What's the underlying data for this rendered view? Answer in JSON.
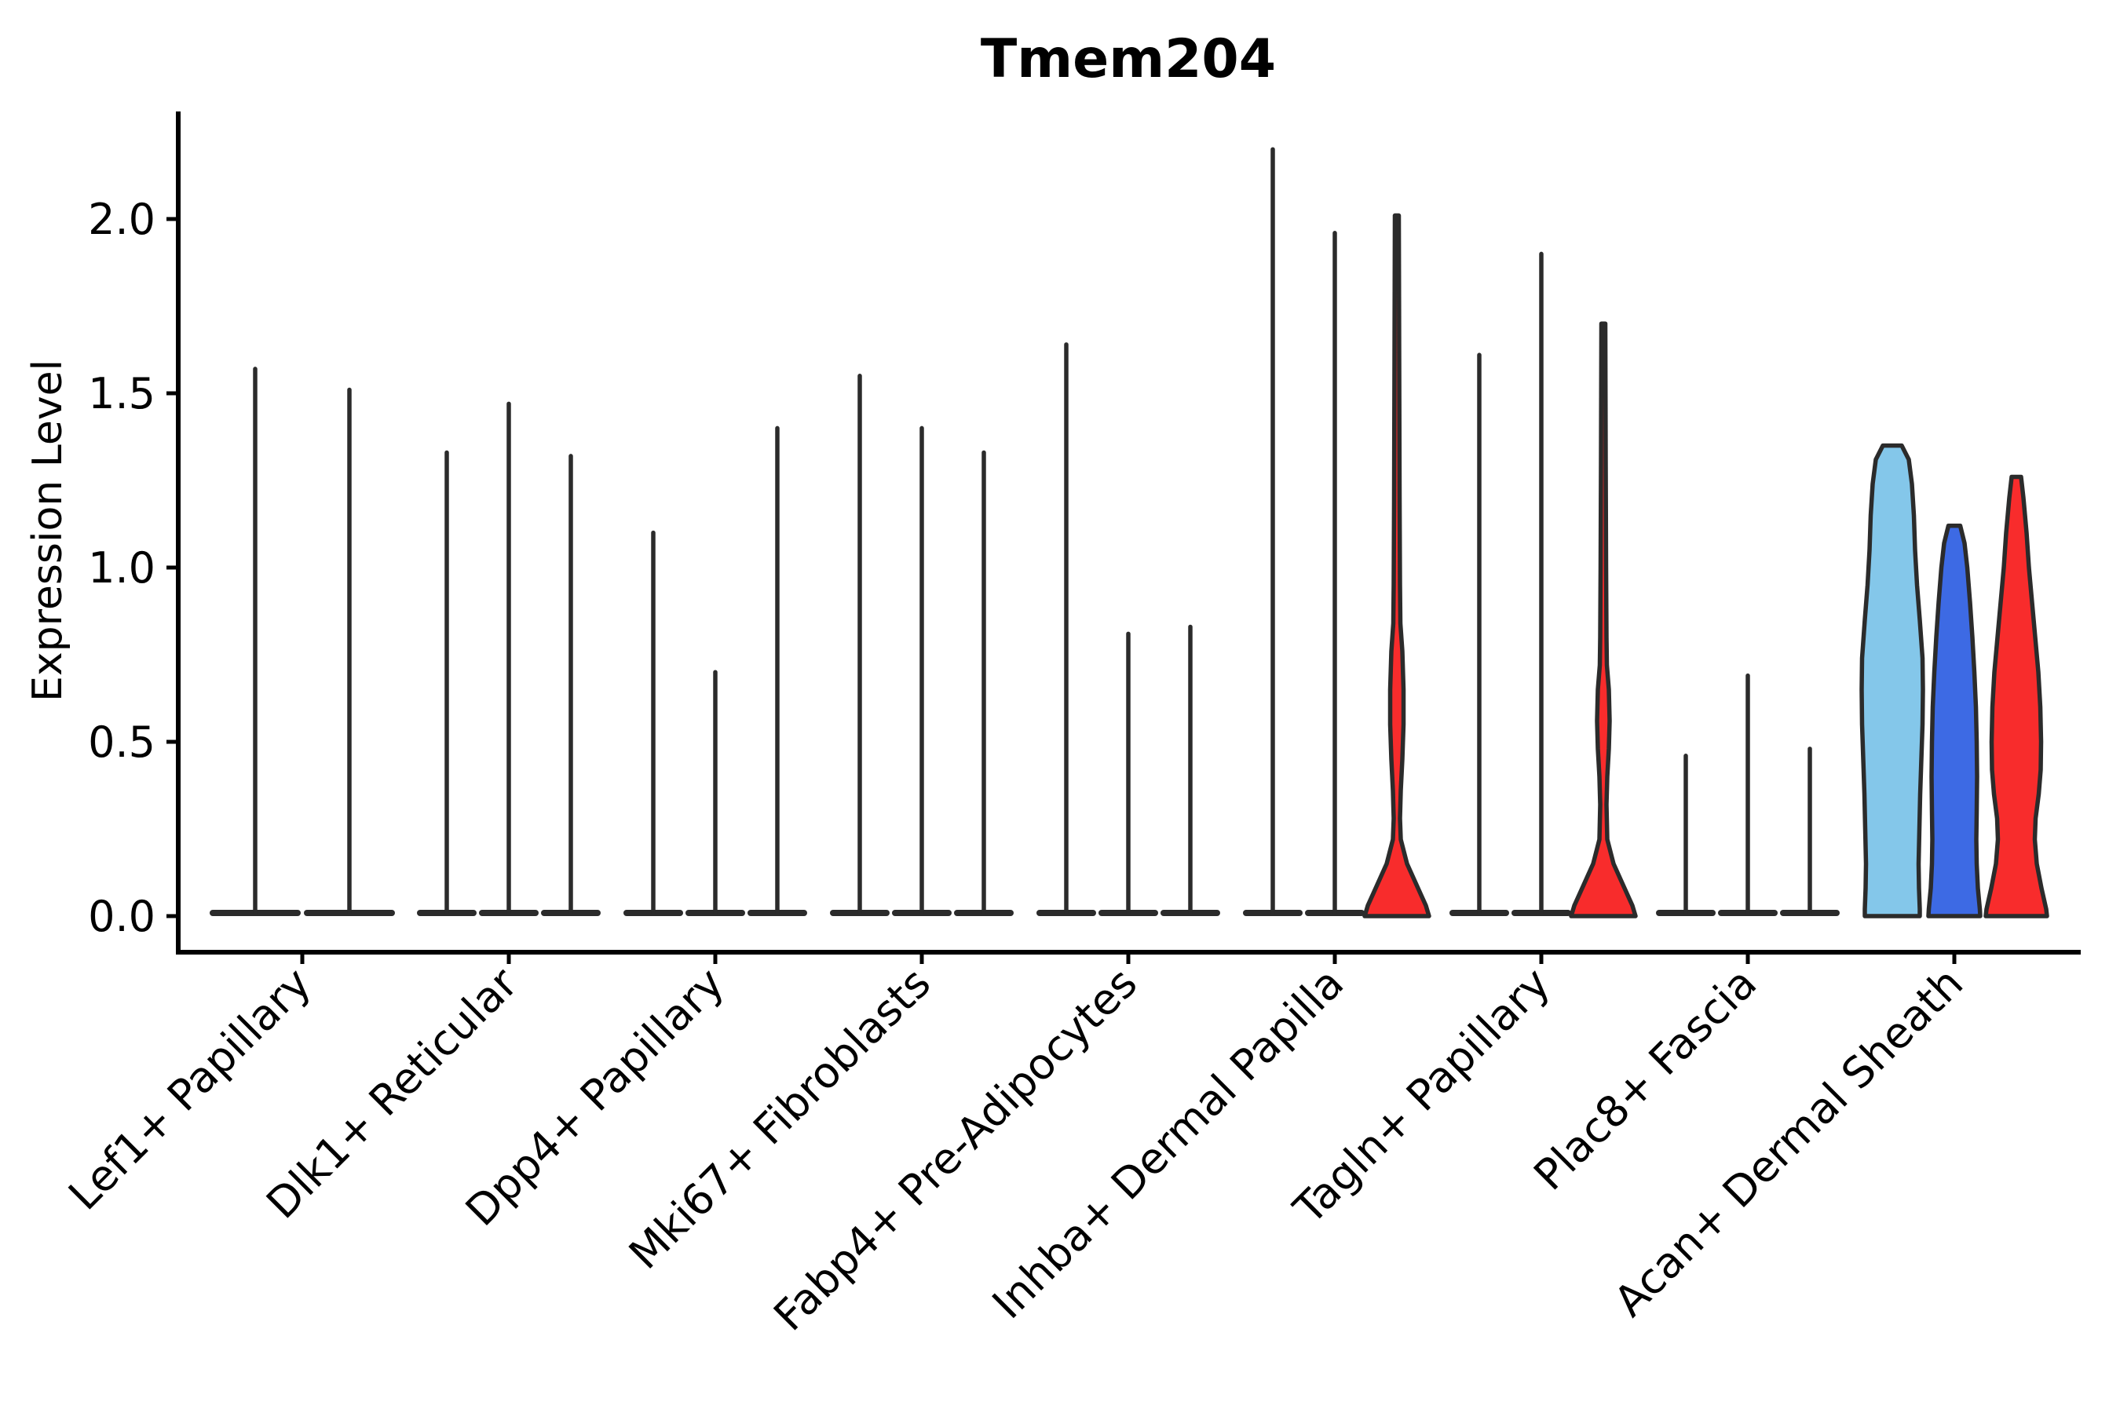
{
  "chart_data": {
    "type": "violin",
    "title": "Tmem204",
    "ylabel": "Expression Level",
    "xlabel": "",
    "grid": "off",
    "legend": "none",
    "ylim": [
      -0.1,
      2.31
    ],
    "ytick_values": [
      0.0,
      0.5,
      1.0,
      1.5,
      2.0
    ],
    "ytick_labels": [
      "0.0",
      "0.5",
      "1.0",
      "1.5",
      "2.0"
    ],
    "categories": [
      "Lef1+ Papillary",
      "Dlk1+ Reticular",
      "Dpp4+ Papillary",
      "Mki67+ Fibroblasts",
      "Fabp4+ Pre-Adipocytes",
      "Inhba+ Dermal Papilla",
      "Tagln+ Papillary",
      "Plac8+ Fascia",
      "Acan+ Dermal Sheath"
    ],
    "colors": {
      "lightblue": "#84C7EA",
      "blue": "#3D6AE4",
      "red": "#F82C2C",
      "outline": "#2b2b2b",
      "axis": "#000000"
    },
    "groups": [
      {
        "category": "Lef1+ Papillary",
        "violins": [
          {
            "kind": "spike",
            "color": null,
            "max": 1.57
          },
          {
            "kind": "spike",
            "color": null,
            "max": 1.51
          }
        ]
      },
      {
        "category": "Dlk1+ Reticular",
        "violins": [
          {
            "kind": "spike",
            "color": null,
            "max": 1.33
          },
          {
            "kind": "spike",
            "color": null,
            "max": 1.47
          },
          {
            "kind": "spike",
            "color": null,
            "max": 1.32
          }
        ]
      },
      {
        "category": "Dpp4+ Papillary",
        "violins": [
          {
            "kind": "spike",
            "color": null,
            "max": 1.1
          },
          {
            "kind": "spike",
            "color": null,
            "max": 0.7
          },
          {
            "kind": "spike",
            "color": null,
            "max": 1.4
          }
        ]
      },
      {
        "category": "Mki67+ Fibroblasts",
        "violins": [
          {
            "kind": "spike",
            "color": null,
            "max": 1.55
          },
          {
            "kind": "spike",
            "color": null,
            "max": 1.4
          },
          {
            "kind": "spike",
            "color": null,
            "max": 1.33
          }
        ]
      },
      {
        "category": "Fabp4+ Pre-Adipocytes",
        "violins": [
          {
            "kind": "spike",
            "color": null,
            "max": 1.64
          },
          {
            "kind": "spike",
            "color": null,
            "max": 0.81
          },
          {
            "kind": "spike",
            "color": null,
            "max": 0.83
          }
        ]
      },
      {
        "category": "Inhba+ Dermal Papilla",
        "violins": [
          {
            "kind": "spike",
            "color": null,
            "max": 2.2
          },
          {
            "kind": "spike",
            "color": null,
            "max": 1.96
          },
          {
            "kind": "filled",
            "color": "red",
            "max": 2.01,
            "profile": [
              [
                2.01,
                5
              ],
              [
                1.6,
                6
              ],
              [
                1.2,
                7
              ],
              [
                0.95,
                8
              ],
              [
                0.84,
                9
              ],
              [
                0.76,
                14
              ],
              [
                0.65,
                17
              ],
              [
                0.55,
                17
              ],
              [
                0.45,
                14
              ],
              [
                0.36,
                10
              ],
              [
                0.28,
                8
              ],
              [
                0.22,
                10
              ],
              [
                0.15,
                26
              ],
              [
                0.08,
                54
              ],
              [
                0.03,
                74
              ],
              [
                0,
                82
              ]
            ]
          }
        ]
      },
      {
        "category": "Tagln+ Papillary",
        "violins": [
          {
            "kind": "spike",
            "color": null,
            "max": 1.61
          },
          {
            "kind": "spike",
            "color": null,
            "max": 1.9
          },
          {
            "kind": "filled",
            "color": "red",
            "max": 1.7,
            "profile": [
              [
                1.7,
                5
              ],
              [
                1.3,
                6
              ],
              [
                1.0,
                7
              ],
              [
                0.8,
                8
              ],
              [
                0.72,
                9
              ],
              [
                0.65,
                14
              ],
              [
                0.56,
                16
              ],
              [
                0.48,
                14
              ],
              [
                0.4,
                10
              ],
              [
                0.32,
                8
              ],
              [
                0.22,
                10
              ],
              [
                0.15,
                26
              ],
              [
                0.08,
                54
              ],
              [
                0.03,
                74
              ],
              [
                0,
                82
              ]
            ]
          }
        ]
      },
      {
        "category": "Plac8+ Fascia",
        "violins": [
          {
            "kind": "spike",
            "color": null,
            "max": 0.46
          },
          {
            "kind": "spike",
            "color": null,
            "max": 0.69
          },
          {
            "kind": "spike",
            "color": null,
            "max": 0.48
          }
        ]
      },
      {
        "category": "Acan+ Dermal Sheath",
        "violins": [
          {
            "kind": "filled",
            "color": "lightblue",
            "max": 1.35,
            "profile": [
              [
                1.35,
                24
              ],
              [
                1.31,
                42
              ],
              [
                1.24,
                50
              ],
              [
                1.15,
                55
              ],
              [
                1.05,
                58
              ],
              [
                0.95,
                63
              ],
              [
                0.85,
                70
              ],
              [
                0.74,
                77
              ],
              [
                0.65,
                78
              ],
              [
                0.55,
                77
              ],
              [
                0.45,
                74
              ],
              [
                0.35,
                71
              ],
              [
                0.25,
                69
              ],
              [
                0.15,
                67
              ],
              [
                0.08,
                68
              ],
              [
                0.02,
                70
              ],
              [
                0,
                70
              ]
            ]
          },
          {
            "kind": "filled",
            "color": "blue",
            "max": 1.12,
            "profile": [
              [
                1.12,
                15
              ],
              [
                1.07,
                26
              ],
              [
                1.0,
                33
              ],
              [
                0.9,
                40
              ],
              [
                0.8,
                46
              ],
              [
                0.7,
                51
              ],
              [
                0.6,
                55
              ],
              [
                0.5,
                57
              ],
              [
                0.4,
                58
              ],
              [
                0.3,
                57
              ],
              [
                0.22,
                56
              ],
              [
                0.15,
                57
              ],
              [
                0.08,
                60
              ],
              [
                0.02,
                65
              ],
              [
                0,
                66
              ]
            ]
          },
          {
            "kind": "filled",
            "color": "red",
            "max": 1.26,
            "profile": [
              [
                1.26,
                12
              ],
              [
                1.2,
                18
              ],
              [
                1.1,
                26
              ],
              [
                1.0,
                32
              ],
              [
                0.9,
                40
              ],
              [
                0.8,
                48
              ],
              [
                0.7,
                56
              ],
              [
                0.6,
                61
              ],
              [
                0.5,
                63
              ],
              [
                0.42,
                62
              ],
              [
                0.35,
                57
              ],
              [
                0.28,
                49
              ],
              [
                0.22,
                47
              ],
              [
                0.15,
                52
              ],
              [
                0.08,
                64
              ],
              [
                0.02,
                76
              ],
              [
                0,
                78
              ]
            ]
          }
        ]
      }
    ]
  }
}
